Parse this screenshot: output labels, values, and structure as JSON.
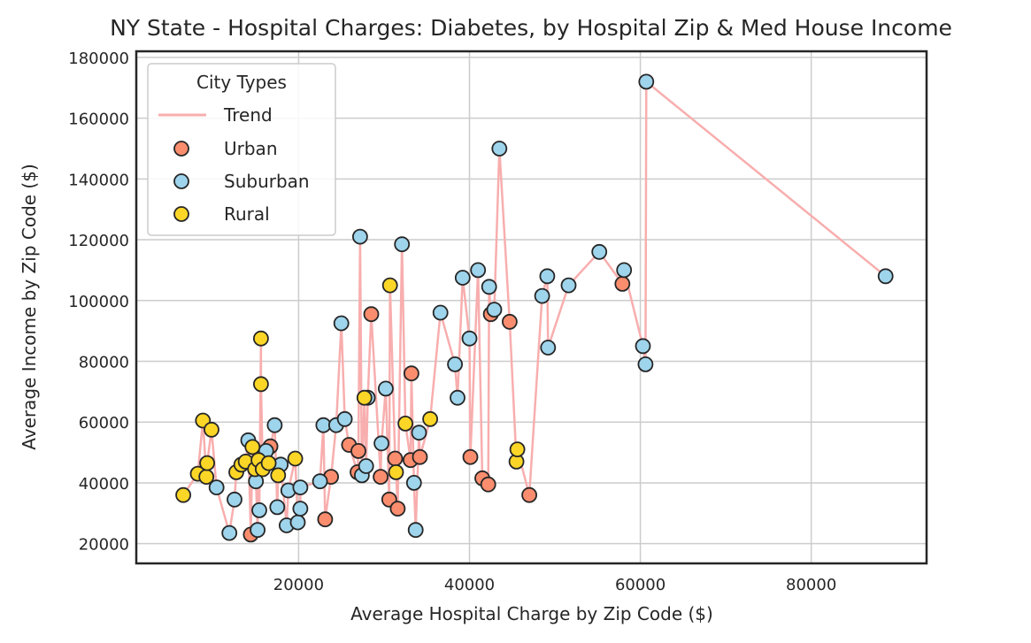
{
  "chart_data": {
    "type": "scatter",
    "title": "NY State - Hospital Charges: Diabetes, by Hospital Zip & Med House Income",
    "xlabel": "Average Hospital Charge by Zip Code ($)",
    "ylabel": "Average Income by Zip Code ($)",
    "xlim": [
      1000,
      93500
    ],
    "ylim": [
      13500,
      182000
    ],
    "xticks": [
      20000,
      40000,
      60000,
      80000
    ],
    "yticks": [
      20000,
      40000,
      60000,
      80000,
      100000,
      120000,
      140000,
      160000,
      180000
    ],
    "xtick_labels": [
      "20000",
      "40000",
      "60000",
      "80000"
    ],
    "ytick_labels": [
      "20000",
      "40000",
      "60000",
      "80000",
      "100000",
      "120000",
      "140000",
      "160000",
      "180000"
    ],
    "grid": true,
    "legend": {
      "title": "City Types",
      "placement": "top-left",
      "entries": [
        {
          "label": "Trend",
          "kind": "line",
          "color": "#f8aeae"
        },
        {
          "label": "Urban",
          "kind": "marker",
          "color": "#f98d6e"
        },
        {
          "label": "Suburban",
          "kind": "marker",
          "color": "#9ed4ec"
        },
        {
          "label": "Rural",
          "kind": "marker",
          "color": "#fcd626"
        }
      ]
    },
    "trend": {
      "name": "Trend",
      "color": "#f8aeae",
      "points": [
        [
          6500,
          36000
        ],
        [
          8200,
          43000
        ],
        [
          8800,
          60500
        ],
        [
          9200,
          42000
        ],
        [
          9300,
          46500
        ],
        [
          9800,
          57500
        ],
        [
          10400,
          38500
        ],
        [
          11900,
          23500
        ],
        [
          12500,
          34500
        ],
        [
          12700,
          43500
        ],
        [
          13300,
          46000
        ],
        [
          13800,
          47000
        ],
        [
          14100,
          54000
        ],
        [
          14400,
          23000
        ],
        [
          14600,
          51800
        ],
        [
          14900,
          44500
        ],
        [
          15000,
          40500
        ],
        [
          15200,
          24500
        ],
        [
          15300,
          47500
        ],
        [
          15400,
          31000
        ],
        [
          15600,
          87500
        ],
        [
          15600,
          72500
        ],
        [
          15800,
          44500
        ],
        [
          16200,
          50500
        ],
        [
          16500,
          46500
        ],
        [
          16700,
          52000
        ],
        [
          17200,
          59000
        ],
        [
          17500,
          32000
        ],
        [
          17600,
          42500
        ],
        [
          17900,
          46000
        ],
        [
          18600,
          26000
        ],
        [
          18800,
          37500
        ],
        [
          19600,
          48000
        ],
        [
          19900,
          27000
        ],
        [
          20200,
          31500
        ],
        [
          20200,
          38500
        ],
        [
          22500,
          40500
        ],
        [
          22900,
          59000
        ],
        [
          23100,
          28000
        ],
        [
          23800,
          42000
        ],
        [
          24400,
          59000
        ],
        [
          25000,
          92500
        ],
        [
          25400,
          61000
        ],
        [
          25900,
          52500
        ],
        [
          26900,
          43500
        ],
        [
          27000,
          50500
        ],
        [
          27200,
          121000
        ],
        [
          27400,
          42500
        ],
        [
          27700,
          68000
        ],
        [
          27900,
          45500
        ],
        [
          28100,
          68000
        ],
        [
          28500,
          95500
        ],
        [
          29600,
          42000
        ],
        [
          29700,
          53000
        ],
        [
          30200,
          71000
        ],
        [
          30600,
          34500
        ],
        [
          30700,
          105000
        ],
        [
          31300,
          48000
        ],
        [
          31400,
          43500
        ],
        [
          31600,
          31500
        ],
        [
          32100,
          118500
        ],
        [
          32500,
          59500
        ],
        [
          33100,
          47500
        ],
        [
          33200,
          76000
        ],
        [
          33500,
          40000
        ],
        [
          33700,
          24500
        ],
        [
          34100,
          56500
        ],
        [
          34200,
          48500
        ],
        [
          35400,
          61000
        ],
        [
          36600,
          96000
        ],
        [
          38300,
          79000
        ],
        [
          38600,
          68000
        ],
        [
          39200,
          107500
        ],
        [
          40000,
          87500
        ],
        [
          40100,
          48500
        ],
        [
          41000,
          110000
        ],
        [
          41500,
          41500
        ],
        [
          42200,
          39500
        ],
        [
          42300,
          104500
        ],
        [
          42500,
          95500
        ],
        [
          42900,
          97000
        ],
        [
          43500,
          150000
        ],
        [
          44700,
          93000
        ],
        [
          45500,
          47000
        ],
        [
          45600,
          51000
        ],
        [
          47000,
          36000
        ],
        [
          48500,
          101500
        ],
        [
          49100,
          108000
        ],
        [
          49200,
          84500
        ],
        [
          51600,
          105000
        ],
        [
          55200,
          116000
        ],
        [
          57900,
          105500
        ],
        [
          58100,
          110000
        ],
        [
          60300,
          85000
        ],
        [
          60600,
          79000
        ],
        [
          60700,
          172000
        ],
        [
          88700,
          108000
        ]
      ]
    },
    "series": [
      {
        "name": "Urban",
        "color": "#f98d6e",
        "points": [
          [
            14400,
            23000
          ],
          [
            16700,
            52000
          ],
          [
            23100,
            28000
          ],
          [
            23800,
            42000
          ],
          [
            25900,
            52500
          ],
          [
            26900,
            43500
          ],
          [
            27000,
            50500
          ],
          [
            28500,
            95500
          ],
          [
            29600,
            42000
          ],
          [
            30600,
            34500
          ],
          [
            31300,
            48000
          ],
          [
            31600,
            31500
          ],
          [
            33100,
            47500
          ],
          [
            33200,
            76000
          ],
          [
            34200,
            48500
          ],
          [
            40100,
            48500
          ],
          [
            41500,
            41500
          ],
          [
            42200,
            39500
          ],
          [
            42500,
            95500
          ],
          [
            44700,
            93000
          ],
          [
            47000,
            36000
          ],
          [
            57900,
            105500
          ]
        ]
      },
      {
        "name": "Suburban",
        "color": "#9ed4ec",
        "points": [
          [
            10400,
            38500
          ],
          [
            11900,
            23500
          ],
          [
            12500,
            34500
          ],
          [
            14100,
            54000
          ],
          [
            15000,
            40500
          ],
          [
            15200,
            24500
          ],
          [
            15400,
            31000
          ],
          [
            16200,
            50500
          ],
          [
            17200,
            59000
          ],
          [
            17500,
            32000
          ],
          [
            17900,
            46000
          ],
          [
            18600,
            26000
          ],
          [
            18800,
            37500
          ],
          [
            19900,
            27000
          ],
          [
            20200,
            31500
          ],
          [
            20200,
            38500
          ],
          [
            22500,
            40500
          ],
          [
            22900,
            59000
          ],
          [
            24400,
            59000
          ],
          [
            25000,
            92500
          ],
          [
            25400,
            61000
          ],
          [
            27200,
            121000
          ],
          [
            27400,
            42500
          ],
          [
            27900,
            45500
          ],
          [
            28100,
            68000
          ],
          [
            29700,
            53000
          ],
          [
            30200,
            71000
          ],
          [
            32100,
            118500
          ],
          [
            33500,
            40000
          ],
          [
            33700,
            24500
          ],
          [
            34100,
            56500
          ],
          [
            36600,
            96000
          ],
          [
            38300,
            79000
          ],
          [
            38600,
            68000
          ],
          [
            39200,
            107500
          ],
          [
            40000,
            87500
          ],
          [
            41000,
            110000
          ],
          [
            42300,
            104500
          ],
          [
            42900,
            97000
          ],
          [
            43500,
            150000
          ],
          [
            48500,
            101500
          ],
          [
            49100,
            108000
          ],
          [
            49200,
            84500
          ],
          [
            51600,
            105000
          ],
          [
            55200,
            116000
          ],
          [
            58100,
            110000
          ],
          [
            60300,
            85000
          ],
          [
            60600,
            79000
          ],
          [
            60700,
            172000
          ],
          [
            88700,
            108000
          ]
        ]
      },
      {
        "name": "Rural",
        "color": "#fcd626",
        "points": [
          [
            6500,
            36000
          ],
          [
            8200,
            43000
          ],
          [
            8800,
            60500
          ],
          [
            9200,
            42000
          ],
          [
            9300,
            46500
          ],
          [
            9800,
            57500
          ],
          [
            12700,
            43500
          ],
          [
            13300,
            46000
          ],
          [
            13800,
            47000
          ],
          [
            14600,
            51800
          ],
          [
            14900,
            44500
          ],
          [
            15300,
            47500
          ],
          [
            15600,
            87500
          ],
          [
            15600,
            72500
          ],
          [
            15800,
            44500
          ],
          [
            16500,
            46500
          ],
          [
            17600,
            42500
          ],
          [
            19600,
            48000
          ],
          [
            27700,
            68000
          ],
          [
            30700,
            105000
          ],
          [
            31400,
            43500
          ],
          [
            32500,
            59500
          ],
          [
            35400,
            61000
          ],
          [
            45500,
            47000
          ],
          [
            45600,
            51000
          ]
        ]
      }
    ]
  }
}
